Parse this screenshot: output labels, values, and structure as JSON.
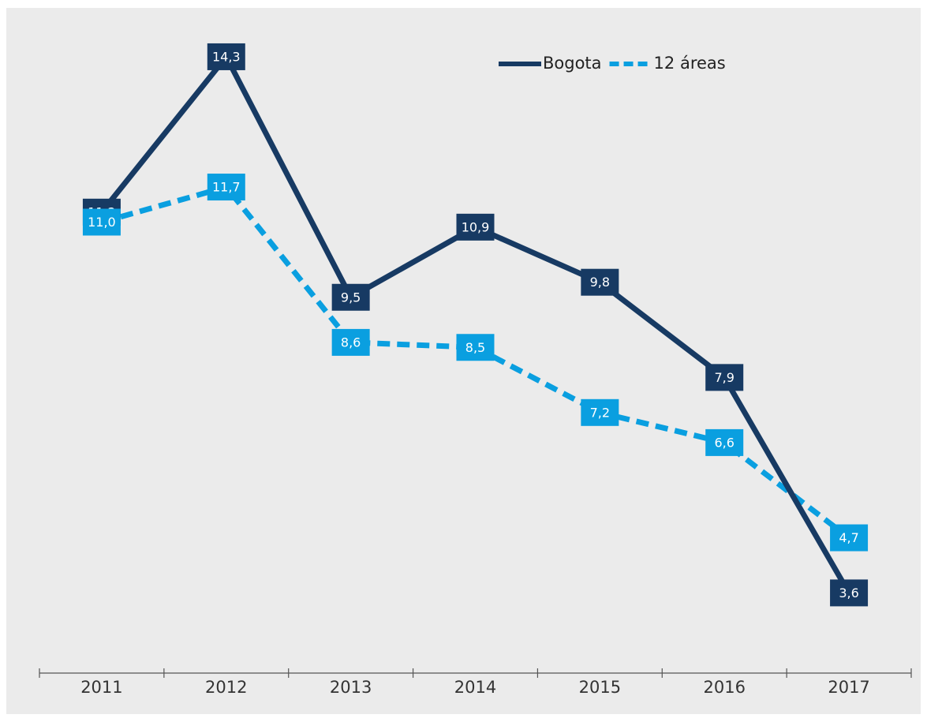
{
  "chart_data": {
    "type": "line",
    "categories": [
      "2011",
      "2012",
      "2013",
      "2014",
      "2015",
      "2016",
      "2017"
    ],
    "series": [
      {
        "name": "Bogota",
        "color": "#173a63",
        "style": "solid",
        "values": [
          11.2,
          14.3,
          9.5,
          10.9,
          9.8,
          7.9,
          3.6
        ],
        "value_labels": [
          "11,2",
          "14,3",
          "9,5",
          "10,9",
          "9,8",
          "7,9",
          "3,6"
        ]
      },
      {
        "name": "12 áreas",
        "color": "#0a9fe0",
        "style": "dashed",
        "values": [
          11.0,
          11.7,
          8.6,
          8.5,
          7.2,
          6.6,
          4.7
        ],
        "value_labels": [
          "11,0",
          "11,7",
          "8,6",
          "8,5",
          "7,2",
          "6,6",
          "4,7"
        ]
      }
    ],
    "ylim": [
      2,
      15
    ],
    "legend": "top-right"
  }
}
